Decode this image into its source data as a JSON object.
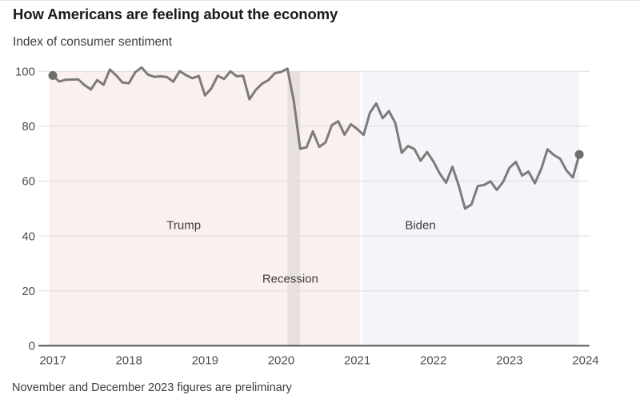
{
  "header": {
    "title": "How Americans are feeling about the economy",
    "subtitle": "Index of consumer sentiment"
  },
  "footnote": "November and December 2023 figures are preliminary",
  "colors": {
    "line": "#7b7b7b",
    "endpoint": "#6e6e6e",
    "axis": "#545454",
    "grid": "#dcdcdc",
    "tick_label": "#4d4d4d",
    "annotation": "#3c3c3c"
  },
  "chart_data": {
    "type": "line",
    "title": "How Americans are feeling about the economy",
    "ylabel": "Index of consumer sentiment",
    "xlabel": "",
    "frequency": "monthly",
    "start_year": 2017,
    "x_ticks": [
      2017,
      2018,
      2019,
      2020,
      2021,
      2022,
      2023,
      2024
    ],
    "y_ticks": [
      0,
      20,
      40,
      60,
      80,
      100
    ],
    "ylim": [
      0,
      100
    ],
    "xlim": [
      2016.81,
      2024.05
    ],
    "grid": true,
    "legend": false,
    "series": [
      {
        "name": "Index of consumer sentiment",
        "values": [
          98.5,
          96.3,
          96.9,
          97.0,
          97.1,
          95.0,
          93.4,
          96.8,
          95.1,
          100.7,
          98.5,
          95.9,
          95.7,
          99.7,
          101.4,
          98.8,
          98.0,
          98.2,
          97.9,
          96.2,
          100.1,
          98.6,
          97.5,
          98.3,
          91.2,
          93.8,
          98.4,
          97.2,
          100.0,
          98.2,
          98.4,
          89.8,
          93.2,
          95.5,
          96.8,
          99.3,
          99.8,
          101.0,
          89.1,
          71.8,
          72.3,
          78.1,
          72.5,
          74.1,
          80.4,
          81.8,
          76.9,
          80.7,
          79.0,
          76.8,
          84.9,
          88.3,
          82.9,
          85.5,
          81.2,
          70.3,
          72.8,
          71.7,
          67.4,
          70.6,
          67.2,
          62.8,
          59.4,
          65.2,
          58.4,
          50.0,
          51.5,
          58.2,
          58.6,
          59.9,
          56.8,
          59.7,
          64.9,
          67.0,
          62.0,
          63.5,
          59.2,
          64.4,
          71.6,
          69.5,
          68.1,
          63.8,
          61.3,
          69.7
        ]
      }
    ],
    "endpoint_markers": [
      {
        "x": 2017.0,
        "value": 98.5
      },
      {
        "x": 2023.917,
        "value": 69.7
      }
    ],
    "regions": [
      {
        "label": "Trump",
        "start": 2016.958,
        "end": 2021.035,
        "color": "#faf0ee"
      },
      {
        "label": "Biden",
        "start": 2021.07,
        "end": 2023.917,
        "color": "#f3f5f9"
      },
      {
        "label": "Recession",
        "start": 2020.083,
        "end": 2020.25,
        "color": "#e8e1e0"
      }
    ],
    "annotations": [
      {
        "label": "Trump",
        "x": 2018.72,
        "y": 44
      },
      {
        "label": "Biden",
        "x": 2021.83,
        "y": 44
      },
      {
        "label": "Recession",
        "x": 2020.12,
        "y": 24.5
      }
    ]
  }
}
